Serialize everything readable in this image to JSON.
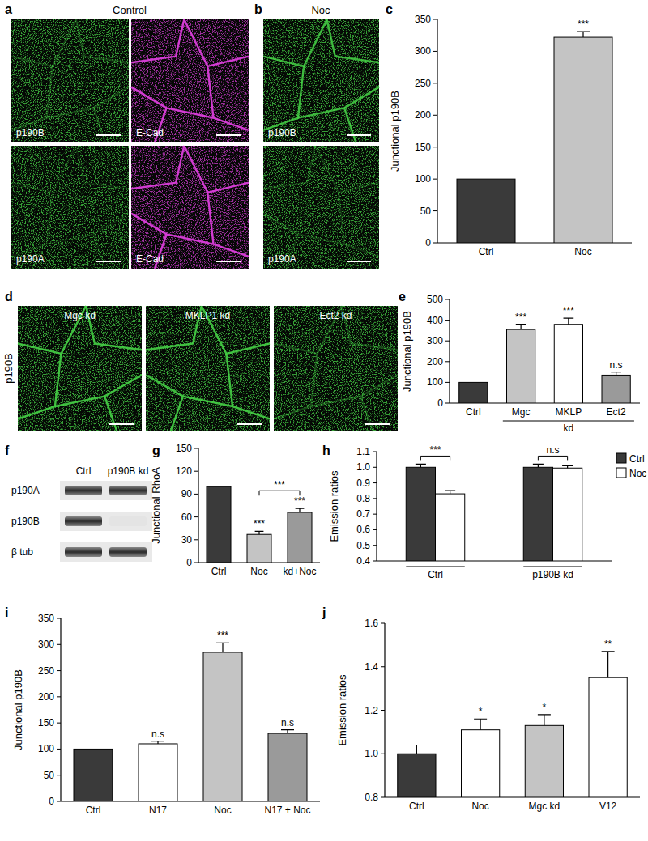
{
  "images": [
    {
      "panel": "a",
      "title": "Control",
      "tiles": [
        {
          "label": "p190B",
          "color": "#46d246"
        },
        {
          "label": "E-Cad",
          "color": "#d23cd2"
        },
        {
          "label": "p190A",
          "color": "#46d246"
        },
        {
          "label": "E-Cad",
          "color": "#d23cd2"
        }
      ]
    },
    {
      "panel": "b",
      "title": "Noc",
      "tiles": [
        {
          "label": "p190B",
          "color": "#46d246"
        },
        {
          "label": "p190A",
          "color": "#46d246"
        }
      ]
    },
    {
      "panel": "d",
      "side_label": "p190B",
      "tiles": [
        {
          "label": "Mgc kd",
          "color": "#46d246"
        },
        {
          "label": "MKLP1 kd",
          "color": "#46d246"
        },
        {
          "label": "Ect2 kd",
          "color": "#46d246"
        }
      ]
    }
  ],
  "blot": {
    "panel": "f",
    "columns": [
      "Ctrl",
      "p190B kd"
    ],
    "rows": [
      {
        "label": "p190A",
        "present": [
          true,
          true
        ]
      },
      {
        "label": "p190B",
        "present": [
          true,
          false
        ]
      },
      {
        "label": "β tub",
        "present": [
          true,
          true
        ]
      }
    ]
  },
  "chart_data": [
    {
      "panel": "c",
      "type": "bar",
      "y_label": "Junctional p190B",
      "categories": [
        "Ctrl",
        "Noc"
      ],
      "values": [
        100,
        322
      ],
      "errors": [
        null,
        9
      ],
      "colors": [
        "#3a3a3a",
        "#c4c4c4"
      ],
      "annotations": [
        null,
        "***"
      ],
      "ylim": [
        0,
        350
      ],
      "yticks": [
        0,
        50,
        100,
        150,
        200,
        250,
        300,
        350
      ]
    },
    {
      "panel": "e",
      "type": "bar",
      "y_label": "Junctional p190B",
      "categories": [
        "Ctrl",
        "Mgc",
        "MKLP",
        "Ect2"
      ],
      "values": [
        100,
        355,
        380,
        135
      ],
      "errors": [
        null,
        25,
        30,
        15
      ],
      "colors": [
        "#3a3a3a",
        "#c4c4c4",
        "#ffffff",
        "#9a9a9a"
      ],
      "annotations": [
        null,
        "***",
        "***",
        "n.s"
      ],
      "category_group": {
        "label": "kd",
        "start": 1,
        "end": 3
      },
      "ylim": [
        0,
        500
      ],
      "yticks": [
        0,
        100,
        200,
        300,
        400,
        500
      ]
    },
    {
      "panel": "g",
      "type": "bar",
      "y_label": "Junctional RhoA",
      "categories": [
        "Ctrl",
        "Noc",
        "kd+Noc"
      ],
      "values": [
        100,
        37,
        66
      ],
      "errors": [
        null,
        4,
        5
      ],
      "colors": [
        "#3a3a3a",
        "#c4c4c4",
        "#9a9a9a"
      ],
      "annotations": [
        null,
        "***",
        "***"
      ],
      "bracket": {
        "from": 1,
        "to": 2,
        "label": "***"
      },
      "ylim": [
        0,
        150
      ],
      "yticks": [
        0,
        30,
        60,
        90,
        120,
        150
      ]
    },
    {
      "panel": "h",
      "type": "bar",
      "y_label": "Emission ratios",
      "categories": [
        "Ctrl",
        "p190B kd"
      ],
      "series": [
        {
          "name": "Ctrl",
          "color": "#3a3a3a",
          "values": [
            1.0,
            1.0
          ],
          "errors": [
            0.02,
            0.02
          ]
        },
        {
          "name": "Noc",
          "color": "#ffffff",
          "values": [
            0.83,
            0.995
          ],
          "errors": [
            0.02,
            0.015
          ]
        }
      ],
      "annotations": [
        "***",
        "n.s"
      ],
      "legend": "upper right",
      "ylim": [
        0.4,
        1.1
      ],
      "yticks": [
        0.4,
        0.5,
        0.6,
        0.7,
        0.8,
        0.9,
        {
          "value": 1,
          "label": "1.0"
        },
        1.1
      ]
    },
    {
      "panel": "i",
      "type": "bar",
      "y_label": "Junctional p190B",
      "categories": [
        "Ctrl",
        "N17",
        "Noc",
        "N17 + Noc"
      ],
      "values": [
        100,
        110,
        285,
        130
      ],
      "errors": [
        null,
        5,
        18,
        7
      ],
      "colors": [
        "#3a3a3a",
        "#ffffff",
        "#c4c4c4",
        "#9a9a9a"
      ],
      "annotations": [
        null,
        "n.s",
        "***",
        "n.s"
      ],
      "ylim": [
        0,
        350
      ],
      "yticks": [
        0,
        50,
        100,
        150,
        200,
        250,
        300,
        350
      ]
    },
    {
      "panel": "j",
      "type": "bar",
      "y_label": "Emission ratios",
      "categories": [
        "Ctrl",
        "Noc",
        "Mgc kd",
        "V12"
      ],
      "values": [
        1.0,
        1.11,
        1.13,
        1.35
      ],
      "errors": [
        0.04,
        0.05,
        0.05,
        0.12
      ],
      "colors": [
        "#3a3a3a",
        "#ffffff",
        "#c4c4c4",
        "#ffffff"
      ],
      "annotations": [
        null,
        "*",
        "*",
        "**"
      ],
      "ylim": [
        0.8,
        1.6
      ],
      "yticks": [
        0.8,
        {
          "value": 1,
          "label": "1.0"
        },
        1.2,
        1.4,
        1.6
      ]
    }
  ]
}
